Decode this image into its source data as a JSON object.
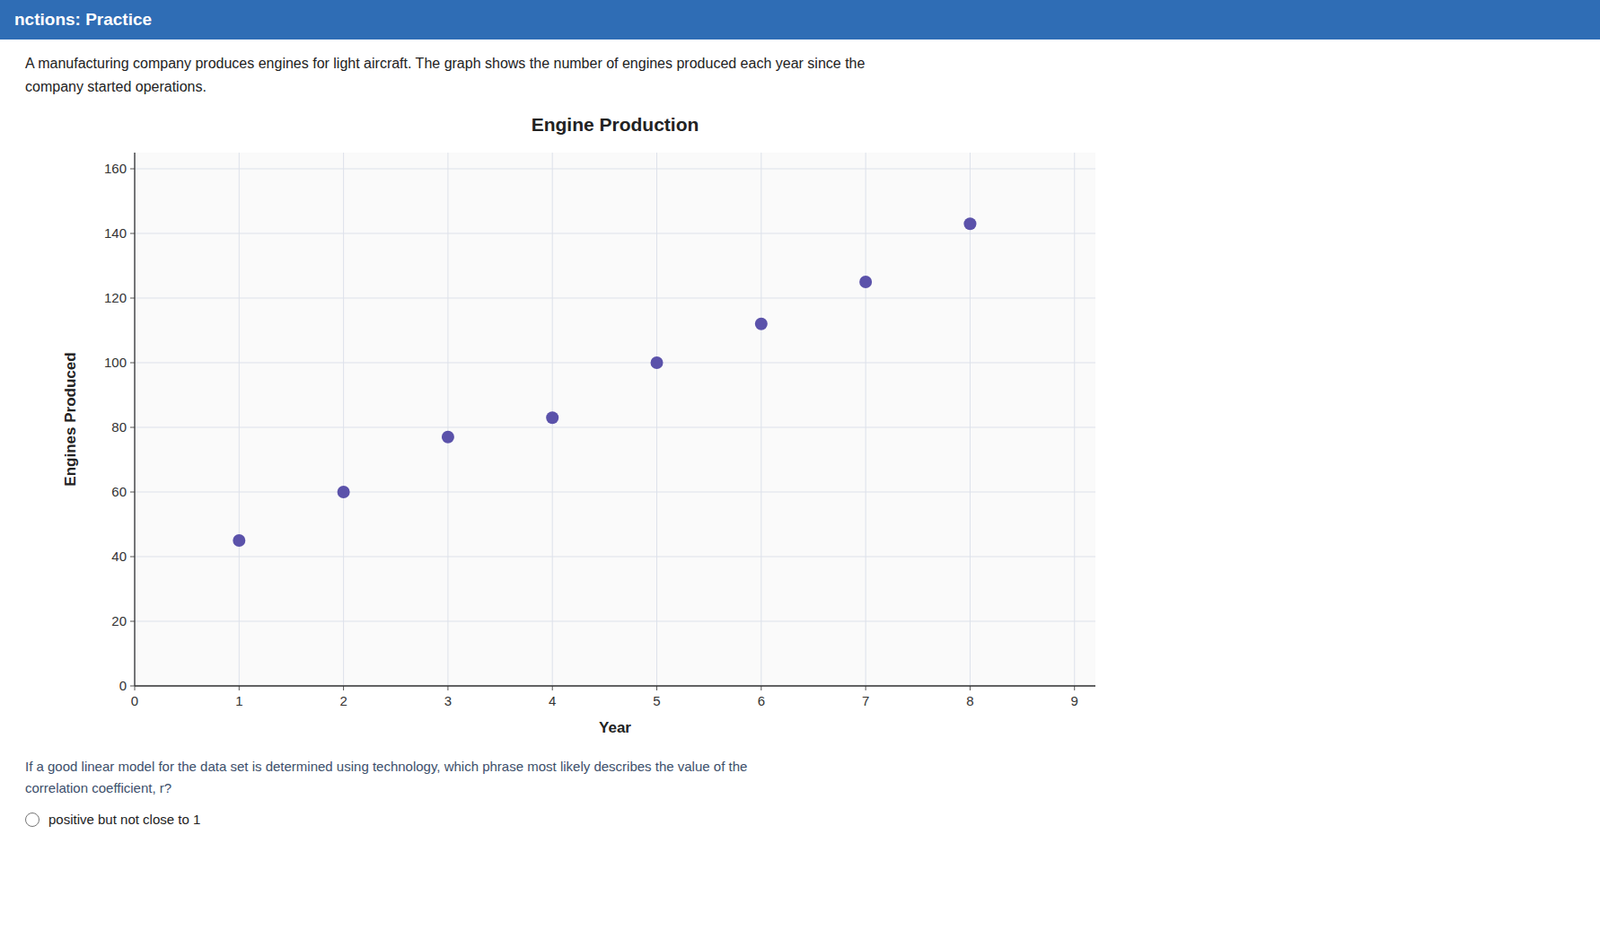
{
  "chart_data": {
    "type": "scatter",
    "title": "Engine Production",
    "x_label": "Year",
    "y_label": "Engines Produced",
    "x": [
      1,
      2,
      3,
      4,
      5,
      6,
      7,
      8
    ],
    "values": [
      45,
      60,
      77,
      83,
      100,
      112,
      125,
      143
    ],
    "color": "#5B52AA",
    "xlim": [
      0,
      9.2
    ],
    "ylim": [
      0,
      165
    ],
    "xticks": [
      0,
      1,
      2,
      3,
      4,
      5,
      6,
      7,
      8,
      9
    ],
    "yticks": [
      0,
      20,
      40,
      60,
      80,
      100,
      120,
      140,
      160
    ],
    "grid": true
  },
  "page": {
    "header": "nctions: Practice",
    "paragraph": [
      "A manufacturing company produces engines for light aircraft. The graph shows the number of engines produced each year since the",
      "company started operations."
    ],
    "question": [
      "If a good linear model for the data set is determined using technology, which phrase most likely describes the value of the",
      "correlation coefficient, r?"
    ],
    "answer": "positive but not close to 1"
  }
}
